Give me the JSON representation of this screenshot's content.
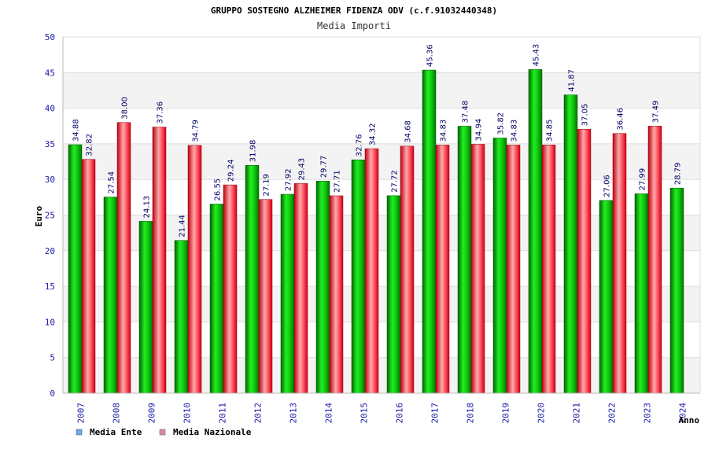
{
  "chart_data": {
    "type": "bar",
    "title": "GRUPPO SOSTEGNO ALZHEIMER FIDENZA ODV (c.f.91032440348)",
    "subtitle": "Media Importi",
    "ylabel": "Euro",
    "xlabel": "Anno",
    "ylim": [
      0,
      50
    ],
    "yticks": [
      0,
      5,
      10,
      15,
      20,
      25,
      30,
      35,
      40,
      45,
      50
    ],
    "grid": true,
    "legend_position": "bottom-left",
    "categories": [
      "2007",
      "2008",
      "2009",
      "2010",
      "2011",
      "2012",
      "2013",
      "2014",
      "2015",
      "2016",
      "2017",
      "2018",
      "2019",
      "2020",
      "2021",
      "2022",
      "2023",
      "2024"
    ],
    "series": [
      {
        "name": "Media Ente",
        "bar_color": "#11bb11",
        "legend_color": "#6fa8e8",
        "values": [
          34.88,
          27.54,
          24.13,
          21.44,
          26.55,
          31.98,
          27.92,
          29.77,
          32.76,
          27.72,
          45.36,
          37.48,
          35.82,
          45.43,
          41.87,
          27.06,
          27.99,
          28.79
        ],
        "labels": [
          "34.88",
          "27.54",
          "24.13",
          "21.44",
          "26.55",
          "31.98",
          "27.92",
          "29.77",
          "32.76",
          "27.72",
          "45.36",
          "37.48",
          "35.82",
          "45.43",
          "41.87",
          "27.06",
          "27.99",
          "28.79"
        ]
      },
      {
        "name": "Media Nazionale",
        "bar_color": "#ee2233",
        "legend_color": "#dd88aa",
        "values": [
          32.82,
          38.0,
          37.36,
          34.79,
          29.24,
          27.19,
          29.43,
          27.71,
          34.32,
          34.68,
          34.83,
          34.94,
          34.83,
          34.85,
          37.05,
          36.46,
          37.49,
          null
        ],
        "labels": [
          "32.82",
          "38.00",
          "37.36",
          "34.79",
          "29.24",
          "27.19",
          "29.43",
          "27.71",
          "34.32",
          "34.68",
          "34.83",
          "34.94",
          "34.83",
          "34.85",
          "37.05",
          "36.46",
          "37.49",
          null
        ]
      }
    ]
  }
}
